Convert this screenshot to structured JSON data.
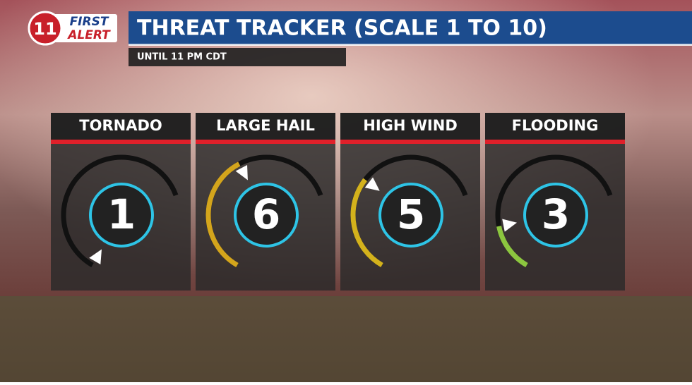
{
  "logo": {
    "number": "11",
    "line1": "FIRST",
    "line2": "ALERT"
  },
  "chart_data": {
    "type": "gauge",
    "title": "THREAT TRACKER (SCALE 1 TO 10)",
    "subtitle": "UNTIL 11 PM CDT",
    "categories": [
      "TORNADO",
      "LARGE HAIL",
      "HIGH WIND",
      "FLOODING"
    ],
    "values": [
      1,
      6,
      5,
      3
    ],
    "colors": [
      "#3fa860",
      "#d4a51c",
      "#d4b21c",
      "#8cc63f"
    ],
    "ylim": [
      1,
      10
    ]
  }
}
